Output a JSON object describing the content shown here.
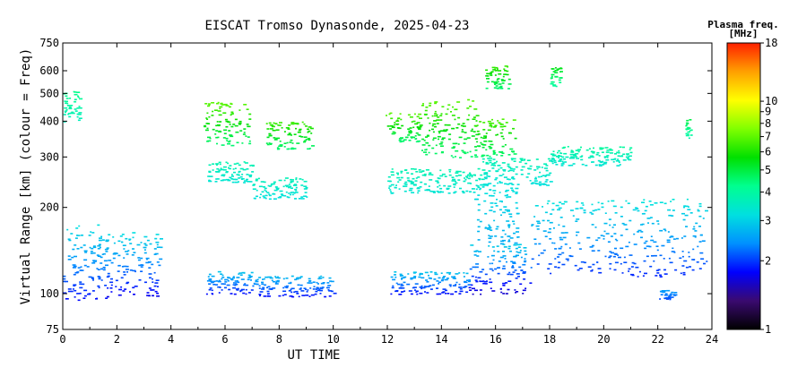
{
  "chart_data": {
    "type": "scatter",
    "title": "EISCAT Tromso Dynasonde, 2025-04-23",
    "xlabel": "UT TIME",
    "ylabel": "Virtual Range [km] (colour = Freq)",
    "xlim": [
      0,
      24
    ],
    "ylim": [
      75,
      750
    ],
    "y_scale": "log",
    "x_ticks": [
      0,
      2,
      4,
      6,
      8,
      10,
      12,
      14,
      16,
      18,
      20,
      22,
      24
    ],
    "y_ticks": [
      75,
      100,
      200,
      300,
      400,
      500,
      600,
      750
    ],
    "grid": false,
    "colorbar": {
      "title": "Plasma freq.",
      "units": "[MHz]",
      "scale": "log",
      "range": [
        1,
        18
      ],
      "ticks": [
        1,
        2,
        3,
        4,
        5,
        6,
        7,
        8,
        9,
        10,
        18
      ],
      "colors": [
        "#000000",
        "#3a0a70",
        "#0000ff",
        "#0090ff",
        "#00e0e0",
        "#00ff90",
        "#00e000",
        "#80ff00",
        "#ffff00",
        "#ffa000",
        "#ff2000"
      ]
    },
    "series": [
      {
        "clusters": [
          {
            "x": [
              0.0,
              1.6
            ],
            "y": [
              95,
              175
            ],
            "freq": [
              1.8,
              3.2
            ]
          },
          {
            "x": [
              1.6,
              3.6
            ],
            "y": [
              98,
              165
            ],
            "freq": [
              1.7,
              3.2
            ]
          },
          {
            "x": [
              5.3,
              7.0
            ],
            "y": [
              100,
              120
            ],
            "freq": [
              1.8,
              2.9
            ]
          },
          {
            "x": [
              7.0,
              10.0
            ],
            "y": [
              98,
              116
            ],
            "freq": [
              1.8,
              2.8
            ]
          },
          {
            "x": [
              12.1,
              15.0
            ],
            "y": [
              100,
              120
            ],
            "freq": [
              1.8,
              2.9
            ]
          },
          {
            "x": [
              15.0,
              17.3
            ],
            "y": [
              100,
              150
            ],
            "freq": [
              1.6,
              3.0
            ]
          },
          {
            "x": [
              15.2,
              16.8
            ],
            "y": [
              150,
              245
            ],
            "freq": [
              2.6,
              3.3
            ]
          },
          {
            "x": [
              17.3,
              23.8
            ],
            "y": [
              115,
              215
            ],
            "freq": [
              1.9,
              3.3
            ]
          },
          {
            "x": [
              22.0,
              22.6
            ],
            "y": [
              95,
              103
            ],
            "freq": [
              2.0,
              2.5
            ]
          }
        ]
      },
      {
        "clusters": [
          {
            "x": [
              5.3,
              7.0
            ],
            "y": [
              245,
              290
            ],
            "freq": [
              3.3,
              3.8
            ]
          },
          {
            "x": [
              7.0,
              9.0
            ],
            "y": [
              215,
              255
            ],
            "freq": [
              3.2,
              3.7
            ]
          },
          {
            "x": [
              12.0,
              15.5
            ],
            "y": [
              225,
              275
            ],
            "freq": [
              3.3,
              3.8
            ]
          },
          {
            "x": [
              15.5,
              18.0
            ],
            "y": [
              240,
              300
            ],
            "freq": [
              3.2,
              3.8
            ]
          },
          {
            "x": [
              18.0,
              21.0
            ],
            "y": [
              280,
              330
            ],
            "freq": [
              3.3,
              4.1
            ]
          }
        ]
      },
      {
        "clusters": [
          {
            "x": [
              0.0,
              0.6
            ],
            "y": [
              400,
              510
            ],
            "freq": [
              3.6,
              4.3
            ]
          },
          {
            "x": [
              5.2,
              6.9
            ],
            "y": [
              330,
              470
            ],
            "freq": [
              4.5,
              7.0
            ]
          },
          {
            "x": [
              7.5,
              9.2
            ],
            "y": [
              320,
              400
            ],
            "freq": [
              4.5,
              6.5
            ]
          },
          {
            "x": [
              11.9,
              13.2
            ],
            "y": [
              340,
              430
            ],
            "freq": [
              4.5,
              7.0
            ]
          },
          {
            "x": [
              13.2,
              15.3
            ],
            "y": [
              300,
              480
            ],
            "freq": [
              4.5,
              7.0
            ]
          },
          {
            "x": [
              15.2,
              16.7
            ],
            "y": [
              300,
              410
            ],
            "freq": [
              4.5,
              6.8
            ]
          },
          {
            "x": [
              15.6,
              16.5
            ],
            "y": [
              520,
              630
            ],
            "freq": [
              4.5,
              6.5
            ]
          },
          {
            "x": [
              18.0,
              18.4
            ],
            "y": [
              530,
              620
            ],
            "freq": [
              4.0,
              5.5
            ]
          },
          {
            "x": [
              23.0,
              23.2
            ],
            "y": [
              350,
              410
            ],
            "freq": [
              3.8,
              5.0
            ]
          }
        ]
      }
    ]
  }
}
